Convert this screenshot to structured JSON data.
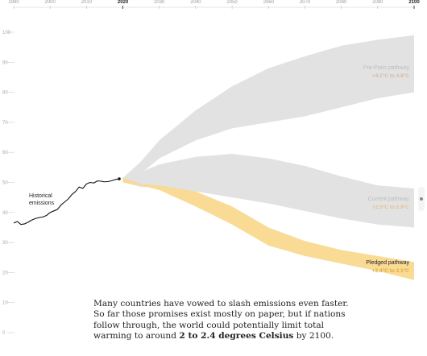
{
  "chart_data": {
    "type": "area",
    "x_ticks": [
      1990,
      2000,
      2010,
      2020,
      2030,
      2040,
      2050,
      2060,
      2070,
      2080,
      2090,
      2100
    ],
    "x_tick_bold": [
      2020,
      2100
    ],
    "y_ticks": [
      0,
      10,
      20,
      30,
      40,
      50,
      60,
      70,
      80,
      90,
      100
    ],
    "xlim": [
      1990,
      2100
    ],
    "ylim": [
      0,
      100
    ],
    "historical": {
      "label_lines": [
        "Historical",
        "emissions"
      ],
      "x": [
        1990,
        1991,
        1992,
        1993,
        1994,
        1995,
        1996,
        1997,
        1998,
        1999,
        2000,
        2001,
        2002,
        2003,
        2004,
        2005,
        2006,
        2007,
        2008,
        2009,
        2010,
        2011,
        2012,
        2013,
        2014,
        2015,
        2016,
        2017,
        2018,
        2019
      ],
      "y": [
        36.5,
        37,
        36,
        36.2,
        36.8,
        37.5,
        38,
        38.3,
        38.5,
        39,
        40,
        40.5,
        41,
        42.5,
        43.5,
        44.5,
        46,
        47,
        48.5,
        48,
        49.5,
        50,
        49.8,
        50.5,
        50.4,
        50.2,
        50.3,
        50.6,
        51,
        51.2
      ]
    },
    "pathways": [
      {
        "name": "Pre-Paris pathway",
        "range": "+4.1°C to 4.8°C",
        "color": "#e2e2e2",
        "x": [
          2020,
          2025,
          2030,
          2040,
          2050,
          2060,
          2070,
          2080,
          2090,
          2100
        ],
        "upper": [
          51.5,
          57,
          64,
          74,
          82,
          88,
          92,
          95.5,
          97.5,
          99
        ],
        "lower": [
          50,
          53,
          58,
          64,
          68,
          70,
          72,
          75,
          78,
          80
        ]
      },
      {
        "name": "Current pathway",
        "range": "+2.5°C to 2.9°C",
        "color": "#e2e2e2",
        "x": [
          2020,
          2025,
          2030,
          2040,
          2050,
          2060,
          2070,
          2080,
          2090,
          2100
        ],
        "upper": [
          51.5,
          53.5,
          56,
          58.5,
          59.5,
          58,
          55.5,
          52,
          49,
          48
        ],
        "lower": [
          50,
          48.5,
          48.3,
          47,
          45,
          43,
          40.5,
          38,
          36,
          35
        ]
      },
      {
        "name": "Pledged pathway",
        "range": "+2.4°C to 2.1°C",
        "color": "#f9d98f",
        "x": [
          2020,
          2025,
          2030,
          2040,
          2050,
          2060,
          2070,
          2080,
          2090,
          2100
        ],
        "upper": [
          51.5,
          49.5,
          49,
          47,
          42,
          35,
          30.5,
          27.5,
          25.5,
          23.5
        ],
        "lower": [
          50,
          49,
          47.5,
          42,
          36,
          29,
          25.5,
          23,
          20.5,
          17.5
        ]
      }
    ]
  },
  "labels": {
    "label_colors": {
      "Pre-Paris pathway": "#bdbdbd",
      "Current pathway": "#bdbdbd",
      "Pledged pathway": "#222222"
    },
    "range_colors": {
      "Pre-Paris pathway": "#d8b9a4",
      "Current pathway": "#e3c28d",
      "Pledged pathway": "#e0a93c"
    }
  },
  "caption": {
    "text_start": "Many countries have vowed to slash emissions even faster. So far those promises exist mostly on paper, but if nations follow through, the world could potentially limit total warming to around ",
    "text_bold": "2 to 2.4 degrees Celsius",
    "text_end": " by 2100."
  }
}
